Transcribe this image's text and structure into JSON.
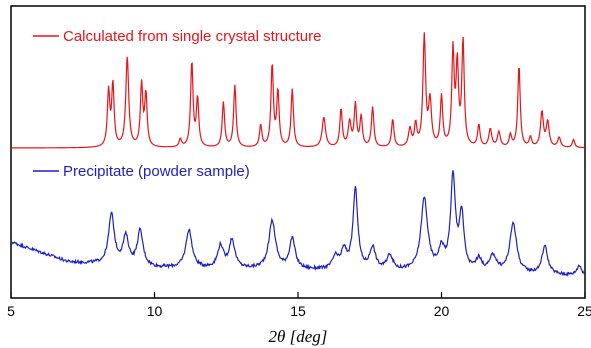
{
  "chart_data": {
    "type": "line",
    "xlabel": "2θ [deg]",
    "xlim": [
      5,
      25
    ],
    "x_ticks": [
      "5",
      "10",
      "15",
      "20",
      "25"
    ],
    "x_tick_values": [
      5,
      10,
      15,
      20,
      25
    ],
    "yticks_shown": false,
    "series": [
      {
        "name": "Calculated from single crystal structure",
        "color": "#e8141b",
        "baseline": 0.12,
        "noise": 0,
        "peaks": [
          [
            8.4,
            0.55,
            0.05
          ],
          [
            8.55,
            0.62,
            0.05
          ],
          [
            9.05,
            0.9,
            0.06
          ],
          [
            9.55,
            0.62,
            0.05
          ],
          [
            9.7,
            0.52,
            0.05
          ],
          [
            10.9,
            0.08,
            0.05
          ],
          [
            11.3,
            0.85,
            0.05
          ],
          [
            11.5,
            0.48,
            0.05
          ],
          [
            12.4,
            0.45,
            0.05
          ],
          [
            12.8,
            0.62,
            0.05
          ],
          [
            13.7,
            0.22,
            0.05
          ],
          [
            14.1,
            0.82,
            0.05
          ],
          [
            14.3,
            0.55,
            0.05
          ],
          [
            14.8,
            0.58,
            0.05
          ],
          [
            15.9,
            0.3,
            0.07
          ],
          [
            16.5,
            0.38,
            0.05
          ],
          [
            16.8,
            0.25,
            0.06
          ],
          [
            17.0,
            0.42,
            0.05
          ],
          [
            17.2,
            0.3,
            0.05
          ],
          [
            17.6,
            0.4,
            0.05
          ],
          [
            18.3,
            0.28,
            0.05
          ],
          [
            18.9,
            0.18,
            0.06
          ],
          [
            19.1,
            0.22,
            0.05
          ],
          [
            19.4,
            1.1,
            0.055
          ],
          [
            19.6,
            0.45,
            0.06
          ],
          [
            20.0,
            0.5,
            0.05
          ],
          [
            20.4,
            0.95,
            0.05
          ],
          [
            20.55,
            0.8,
            0.05
          ],
          [
            20.75,
            1.05,
            0.05
          ],
          [
            21.3,
            0.22,
            0.05
          ],
          [
            21.7,
            0.18,
            0.06
          ],
          [
            22.0,
            0.15,
            0.06
          ],
          [
            22.4,
            0.12,
            0.05
          ],
          [
            22.7,
            0.82,
            0.05
          ],
          [
            23.1,
            0.1,
            0.05
          ],
          [
            23.5,
            0.35,
            0.06
          ],
          [
            23.7,
            0.25,
            0.06
          ],
          [
            24.1,
            0.1,
            0.06
          ],
          [
            24.6,
            0.08,
            0.05
          ]
        ]
      },
      {
        "name": "Precipitate (powder sample)",
        "color": "#1f1fbf",
        "baseline": 0.22,
        "baseline_drift": [
          [
            5,
            0.48
          ],
          [
            7,
            0.28
          ],
          [
            10,
            0.22
          ],
          [
            20,
            0.18
          ],
          [
            25,
            0.14
          ]
        ],
        "noise": 0.015,
        "peaks": [
          [
            8.5,
            0.5,
            0.12
          ],
          [
            9.0,
            0.28,
            0.12
          ],
          [
            9.5,
            0.35,
            0.12
          ],
          [
            11.2,
            0.38,
            0.13
          ],
          [
            12.3,
            0.22,
            0.12
          ],
          [
            12.7,
            0.28,
            0.12
          ],
          [
            14.1,
            0.48,
            0.14
          ],
          [
            14.8,
            0.3,
            0.12
          ],
          [
            16.3,
            0.12,
            0.12
          ],
          [
            16.6,
            0.18,
            0.12
          ],
          [
            17.0,
            0.8,
            0.1
          ],
          [
            17.6,
            0.22,
            0.12
          ],
          [
            18.2,
            0.15,
            0.12
          ],
          [
            19.4,
            0.72,
            0.14
          ],
          [
            20.0,
            0.2,
            0.12
          ],
          [
            20.4,
            0.92,
            0.1
          ],
          [
            20.7,
            0.55,
            0.1
          ],
          [
            21.3,
            0.12,
            0.12
          ],
          [
            21.8,
            0.16,
            0.14
          ],
          [
            22.5,
            0.5,
            0.14
          ],
          [
            23.6,
            0.28,
            0.12
          ],
          [
            24.8,
            0.1,
            0.1
          ]
        ]
      }
    ]
  }
}
